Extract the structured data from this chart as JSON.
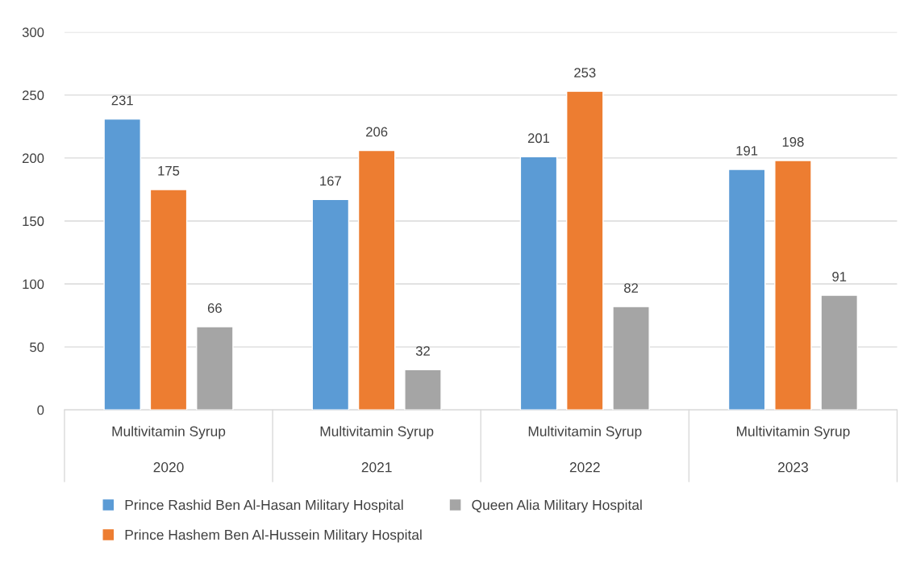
{
  "chart_data": {
    "type": "bar",
    "categories": [
      "Multivitamin Syrup\n2020",
      "Multivitamin Syrup\n2021",
      "Multivitamin Syrup\n2022",
      "Multivitamin Syrup\n2023"
    ],
    "series": [
      {
        "name": "Prince Rashid Ben Al-Hasan Military Hospital",
        "color": "#5b9bd5",
        "values": [
          231,
          167,
          201,
          191
        ]
      },
      {
        "name": "Prince Hashem Ben Al-Hussein Military Hospital",
        "color": "#ed7d31",
        "values": [
          175,
          206,
          253,
          198
        ]
      },
      {
        "name": "Queen Alia Military Hospital",
        "color": "#a5a5a5",
        "values": [
          66,
          32,
          82,
          91
        ]
      }
    ],
    "ylim": [
      0,
      300
    ],
    "yticks": [
      0,
      50,
      100,
      150,
      200,
      250,
      300
    ],
    "grid": "y",
    "legend": "bottom",
    "data_labels": true
  }
}
